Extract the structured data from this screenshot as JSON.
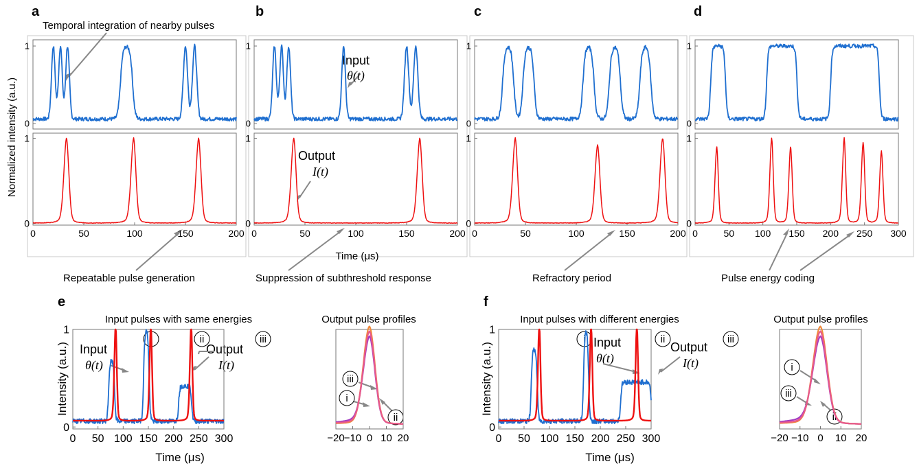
{
  "labels": {
    "ylabel_top": "Normalized intensity (a.u.)",
    "xlabel_top": "Time (μs)",
    "xlabel_e": "Time (μs)",
    "xlabel_f": "Time (μs)",
    "ylabel_e": "Intensity (a.u.)",
    "ylabel_f": "Intensity (a.u.)",
    "title_e": "Input pulses with same energies",
    "title_f": "Input pulses with different energies",
    "title_e2": "Output pulse profiles",
    "title_f2": "Output pulse profiles",
    "input": "Input",
    "theta": "θ(t)",
    "output": "Output",
    "I": "I(t)",
    "i": "i",
    "ii": "ii",
    "iii": "iii"
  },
  "chart_data": [
    {
      "panel": "a",
      "type": "line",
      "annotations": [
        "Temporal integration of nearby pulses",
        "Repeatable pulse generation"
      ],
      "xlim": [
        0,
        200
      ],
      "ylim": [
        0,
        1
      ],
      "xticks": [
        0,
        50,
        100,
        150,
        200
      ],
      "yticks": [
        0,
        1
      ],
      "input_pulses": [
        {
          "c": 20,
          "w": 6,
          "a": 1,
          "shape": "gauss"
        },
        {
          "c": 27,
          "w": 6,
          "a": 1,
          "shape": "gauss"
        },
        {
          "c": 34,
          "w": 6,
          "a": 1,
          "shape": "gauss"
        },
        {
          "c": 92,
          "w": 12,
          "a": 1,
          "shape": "rect"
        },
        {
          "c": 150,
          "w": 7,
          "a": 1,
          "shape": "gauss"
        },
        {
          "c": 159,
          "w": 7,
          "a": 1,
          "shape": "gauss"
        }
      ],
      "output_peaks": [
        {
          "t": 33,
          "a": 1
        },
        {
          "t": 99,
          "a": 1
        },
        {
          "t": 163,
          "a": 1
        }
      ]
    },
    {
      "panel": "b",
      "type": "line",
      "annotations": [
        "Suppression of subthreshold response"
      ],
      "xlim": [
        0,
        200
      ],
      "ylim": [
        0,
        1
      ],
      "xticks": [
        0,
        50,
        100,
        150,
        200
      ],
      "yticks": [
        0,
        1
      ],
      "input_pulses": [
        {
          "c": 20,
          "w": 6,
          "a": 1,
          "shape": "gauss"
        },
        {
          "c": 27,
          "w": 6,
          "a": 1,
          "shape": "gauss"
        },
        {
          "c": 34,
          "w": 6,
          "a": 1,
          "shape": "gauss"
        },
        {
          "c": 88,
          "w": 6,
          "a": 1,
          "shape": "gauss"
        },
        {
          "c": 150,
          "w": 7,
          "a": 1,
          "shape": "gauss"
        },
        {
          "c": 159,
          "w": 7,
          "a": 1,
          "shape": "gauss"
        }
      ],
      "output_peaks": [
        {
          "t": 39,
          "a": 1
        },
        {
          "t": 163,
          "a": 1
        }
      ]
    },
    {
      "panel": "c",
      "type": "line",
      "annotations": [
        "Refractory period"
      ],
      "xlim": [
        0,
        200
      ],
      "ylim": [
        0,
        1
      ],
      "xticks": [
        0,
        50,
        100,
        150,
        200
      ],
      "yticks": [
        0,
        1
      ],
      "input_pulses": [
        {
          "c": 33,
          "w": 11,
          "a": 1,
          "shape": "rect"
        },
        {
          "c": 53,
          "w": 11,
          "a": 1,
          "shape": "rect"
        },
        {
          "c": 112,
          "w": 11,
          "a": 1,
          "shape": "rect"
        },
        {
          "c": 138,
          "w": 11,
          "a": 1,
          "shape": "rect"
        },
        {
          "c": 168,
          "w": 11,
          "a": 1,
          "shape": "rect"
        }
      ],
      "output_peaks": [
        {
          "t": 40,
          "a": 1
        },
        {
          "t": 121,
          "a": 0.92
        },
        {
          "t": 185,
          "a": 1
        }
      ]
    },
    {
      "panel": "d",
      "type": "line",
      "annotations": [
        "Pulse energy coding"
      ],
      "xlim": [
        0,
        300
      ],
      "ylim": [
        0,
        1
      ],
      "xticks": [
        0,
        50,
        100,
        150,
        200,
        250,
        300
      ],
      "yticks": [
        0,
        1
      ],
      "input_pulses": [
        {
          "c": 34,
          "w": 22,
          "a": 1,
          "shape": "rect"
        },
        {
          "c": 128,
          "w": 45,
          "a": 1,
          "shape": "rect"
        },
        {
          "c": 236,
          "w": 72,
          "a": 1,
          "shape": "rect"
        }
      ],
      "output_peaks": [
        {
          "t": 32,
          "a": 0.9
        },
        {
          "t": 113,
          "a": 1
        },
        {
          "t": 141,
          "a": 0.9
        },
        {
          "t": 220,
          "a": 1
        },
        {
          "t": 248,
          "a": 0.95
        },
        {
          "t": 275,
          "a": 0.85
        }
      ]
    },
    {
      "panel": "e",
      "type": "line",
      "xlim": [
        0,
        300
      ],
      "ylim": [
        0,
        1
      ],
      "xticks": [
        0,
        50,
        100,
        150,
        200,
        250,
        300
      ],
      "yticks": [
        0,
        1
      ],
      "input_pulses": [
        {
          "c": 77,
          "w": 12,
          "a": 0.68,
          "shape": "rect"
        },
        {
          "c": 146,
          "w": 11,
          "a": 1,
          "shape": "rect"
        },
        {
          "c": 223,
          "w": 26,
          "a": 0.42,
          "shape": "rect"
        }
      ],
      "output_peaks": [
        {
          "t": 85,
          "a": 1
        },
        {
          "t": 155,
          "a": 1
        },
        {
          "t": 235,
          "a": 1
        }
      ]
    },
    {
      "panel": "e-right",
      "type": "line",
      "xlim": [
        -20,
        20
      ],
      "ylim": [
        0,
        1
      ],
      "xticks": [
        -20,
        -10,
        0,
        10,
        20
      ],
      "profiles": [
        {
          "name": "i",
          "color": "#a23bc2",
          "a": 0.9,
          "tail": 0.12
        },
        {
          "name": "ii",
          "color": "#f08a3c",
          "a": 1,
          "tail": 0.04
        },
        {
          "name": "iii",
          "color": "#e85a8a",
          "a": 0.95,
          "tail": 0.07
        }
      ]
    },
    {
      "panel": "f",
      "type": "line",
      "xlim": [
        0,
        300
      ],
      "ylim": [
        0,
        1
      ],
      "xticks": [
        0,
        50,
        100,
        150,
        200,
        250,
        300
      ],
      "yticks": [
        0,
        1
      ],
      "input_pulses": [
        {
          "c": 70,
          "w": 12,
          "a": 0.8,
          "shape": "rect"
        },
        {
          "c": 172,
          "w": 10,
          "a": 1,
          "shape": "rect"
        },
        {
          "c": 270,
          "w": 60,
          "a": 0.46,
          "shape": "rect"
        }
      ],
      "output_peaks": [
        {
          "t": 80,
          "a": 1
        },
        {
          "t": 182,
          "a": 1
        },
        {
          "t": 272,
          "a": 1
        }
      ]
    },
    {
      "panel": "f-right",
      "type": "line",
      "xlim": [
        -20,
        20
      ],
      "ylim": [
        0,
        1
      ],
      "xticks": [
        -20,
        -10,
        0,
        10,
        20
      ],
      "profiles": [
        {
          "name": "i",
          "color": "#a23bc2",
          "a": 0.9,
          "tail": 0.14
        },
        {
          "name": "ii",
          "color": "#f08a3c",
          "a": 1,
          "tail": 0.05
        },
        {
          "name": "iii",
          "color": "#e85a8a",
          "a": 0.95,
          "tail": 0.08
        }
      ]
    }
  ]
}
